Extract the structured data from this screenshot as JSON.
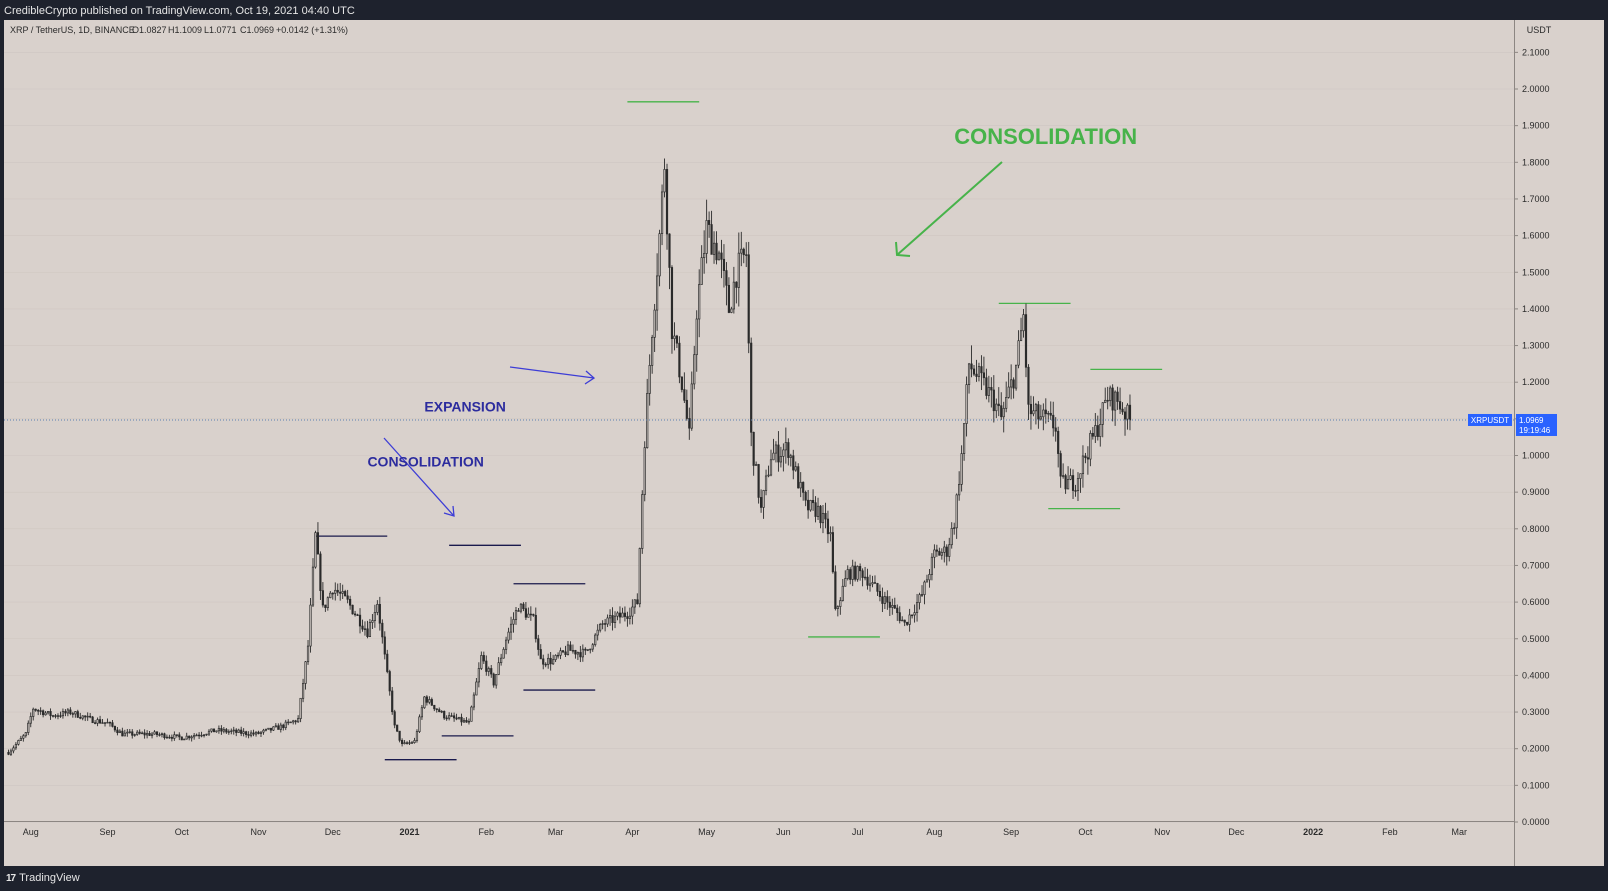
{
  "header": {
    "published": "CredibleCrypto published on TradingView.com, Oct 19, 2021 04:40 UTC"
  },
  "legend": {
    "symbol": "XRP / TetherUS, 1D, BINANCE",
    "open": "O1.0827",
    "high": "H1.1009",
    "low": "L1.0771",
    "close": "C1.0969",
    "change": "+0.0142 (+1.31%)"
  },
  "footer": {
    "brand_logo": "17",
    "brand_name": "TradingView"
  },
  "price_tag": {
    "symbol": "XRPUSDT",
    "price": "1.0969",
    "countdown": "19:19:46",
    "color": "#2962ff"
  },
  "annotations": [
    {
      "text": "CONSOLIDATION",
      "date": "2020-12-15",
      "price": 0.97,
      "color": "#2c2c9e"
    },
    {
      "text": "EXPANSION",
      "date": "2021-01-07",
      "price": 1.12,
      "color": "#2c2c9e"
    },
    {
      "text": "CONSOLIDATION",
      "date": "2021-08-09",
      "price": 1.85,
      "color": "#47b34a"
    }
  ],
  "chart_data": {
    "type": "candlestick",
    "symbol": "XRPUSDT",
    "yaxis_unit": "USDT",
    "ylim": [
      0.0,
      2.15
    ],
    "y_ticks": [
      "2.1000",
      "2.0000",
      "1.9000",
      "1.8000",
      "1.7000",
      "1.6000",
      "1.5000",
      "1.4000",
      "1.3000",
      "1.2000",
      "1.1000",
      "1.0000",
      "0.9000",
      "0.8000",
      "0.7000",
      "0.6000",
      "0.5000",
      "0.4000",
      "0.3000",
      "0.2000",
      "0.1000",
      "0.0000"
    ],
    "x_ticks": [
      "Aug",
      "Sep",
      "Oct",
      "Nov",
      "Dec",
      "2021",
      "Feb",
      "Mar",
      "Apr",
      "May",
      "Jun",
      "Jul",
      "Aug",
      "Sep",
      "Oct",
      "Nov",
      "Dec",
      "2022",
      "Feb",
      "Mar"
    ],
    "last_price": 1.0969,
    "price_path": [
      [
        "2020-07-23",
        0.19
      ],
      [
        "2020-07-30",
        0.24
      ],
      [
        "2020-08-02",
        0.31
      ],
      [
        "2020-08-10",
        0.29
      ],
      [
        "2020-08-17",
        0.3
      ],
      [
        "2020-08-25",
        0.28
      ],
      [
        "2020-09-01",
        0.27
      ],
      [
        "2020-09-07",
        0.24
      ],
      [
        "2020-09-20",
        0.24
      ],
      [
        "2020-10-01",
        0.23
      ],
      [
        "2020-10-15",
        0.25
      ],
      [
        "2020-10-31",
        0.24
      ],
      [
        "2020-11-10",
        0.26
      ],
      [
        "2020-11-17",
        0.28
      ],
      [
        "2020-11-21",
        0.48
      ],
      [
        "2020-11-24",
        0.78
      ],
      [
        "2020-11-27",
        0.58
      ],
      [
        "2020-12-01",
        0.64
      ],
      [
        "2020-12-07",
        0.6
      ],
      [
        "2020-12-15",
        0.52
      ],
      [
        "2020-12-19",
        0.6
      ],
      [
        "2020-12-23",
        0.4
      ],
      [
        "2020-12-26",
        0.26
      ],
      [
        "2020-12-29",
        0.21
      ],
      [
        "2021-01-03",
        0.22
      ],
      [
        "2021-01-07",
        0.34
      ],
      [
        "2021-01-15",
        0.29
      ],
      [
        "2021-01-25",
        0.27
      ],
      [
        "2021-01-30",
        0.45
      ],
      [
        "2021-02-04",
        0.38
      ],
      [
        "2021-02-09",
        0.5
      ],
      [
        "2021-02-14",
        0.59
      ],
      [
        "2021-02-20",
        0.55
      ],
      [
        "2021-02-23",
        0.44
      ],
      [
        "2021-02-28",
        0.44
      ],
      [
        "2021-03-06",
        0.47
      ],
      [
        "2021-03-13",
        0.46
      ],
      [
        "2021-03-20",
        0.54
      ],
      [
        "2021-03-30",
        0.57
      ],
      [
        "2021-04-03",
        0.6
      ],
      [
        "2021-04-06",
        1.05
      ],
      [
        "2021-04-09",
        1.35
      ],
      [
        "2021-04-12",
        1.6
      ],
      [
        "2021-04-14",
        1.8
      ],
      [
        "2021-04-17",
        1.35
      ],
      [
        "2021-04-21",
        1.2
      ],
      [
        "2021-04-24",
        1.05
      ],
      [
        "2021-04-27",
        1.4
      ],
      [
        "2021-05-01",
        1.62
      ],
      [
        "2021-05-06",
        1.55
      ],
      [
        "2021-05-10",
        1.4
      ],
      [
        "2021-05-13",
        1.5
      ],
      [
        "2021-05-17",
        1.55
      ],
      [
        "2021-05-19",
        1.05
      ],
      [
        "2021-05-23",
        0.85
      ],
      [
        "2021-05-27",
        1.0
      ],
      [
        "2021-06-03",
        1.02
      ],
      [
        "2021-06-10",
        0.86
      ],
      [
        "2021-06-15",
        0.85
      ],
      [
        "2021-06-20",
        0.78
      ],
      [
        "2021-06-22",
        0.57
      ],
      [
        "2021-06-27",
        0.68
      ],
      [
        "2021-07-03",
        0.68
      ],
      [
        "2021-07-10",
        0.62
      ],
      [
        "2021-07-17",
        0.57
      ],
      [
        "2021-07-20",
        0.54
      ],
      [
        "2021-07-27",
        0.62
      ],
      [
        "2021-08-01",
        0.73
      ],
      [
        "2021-08-06",
        0.74
      ],
      [
        "2021-08-09",
        0.82
      ],
      [
        "2021-08-12",
        1.0
      ],
      [
        "2021-08-15",
        1.25
      ],
      [
        "2021-08-20",
        1.2
      ],
      [
        "2021-08-25",
        1.15
      ],
      [
        "2021-08-28",
        1.1
      ],
      [
        "2021-09-03",
        1.24
      ],
      [
        "2021-09-06",
        1.38
      ],
      [
        "2021-09-08",
        1.12
      ],
      [
        "2021-09-14",
        1.1
      ],
      [
        "2021-09-19",
        1.08
      ],
      [
        "2021-09-21",
        0.92
      ],
      [
        "2021-09-27",
        0.93
      ],
      [
        "2021-10-01",
        1.0
      ],
      [
        "2021-10-06",
        1.08
      ],
      [
        "2021-10-10",
        1.16
      ],
      [
        "2021-10-14",
        1.15
      ],
      [
        "2021-10-19",
        1.097
      ]
    ],
    "level_lines": [
      {
        "start": "2020-11-24",
        "end": "2020-12-23",
        "price": 0.78,
        "color": "#1a1a4d"
      },
      {
        "start": "2020-12-22",
        "end": "2021-01-20",
        "price": 0.17,
        "color": "#1a1a4d"
      },
      {
        "start": "2021-01-17",
        "end": "2021-02-15",
        "price": 0.755,
        "color": "#1a1a4d"
      },
      {
        "start": "2021-01-14",
        "end": "2021-02-12",
        "price": 0.235,
        "color": "#1a1a4d"
      },
      {
        "start": "2021-02-12",
        "end": "2021-03-13",
        "price": 0.65,
        "color": "#1a1a4d"
      },
      {
        "start": "2021-02-16",
        "end": "2021-03-17",
        "price": 0.36,
        "color": "#1a1a4d"
      },
      {
        "start": "2021-03-30",
        "end": "2021-04-28",
        "price": 1.965,
        "color": "#47b34a"
      },
      {
        "start": "2021-06-11",
        "end": "2021-07-10",
        "price": 0.505,
        "color": "#47b34a"
      },
      {
        "start": "2021-08-27",
        "end": "2021-09-25",
        "price": 1.415,
        "color": "#47b34a"
      },
      {
        "start": "2021-09-16",
        "end": "2021-10-15",
        "price": 0.855,
        "color": "#47b34a"
      },
      {
        "start": "2021-10-03",
        "end": "2021-11-01",
        "price": 1.235,
        "color": "#47b34a"
      }
    ],
    "colors": {
      "background": "#d9d1cc",
      "candles": "#2b2b2b",
      "grid": "#cfc6c1",
      "price_line": "#5b7fb0"
    }
  }
}
